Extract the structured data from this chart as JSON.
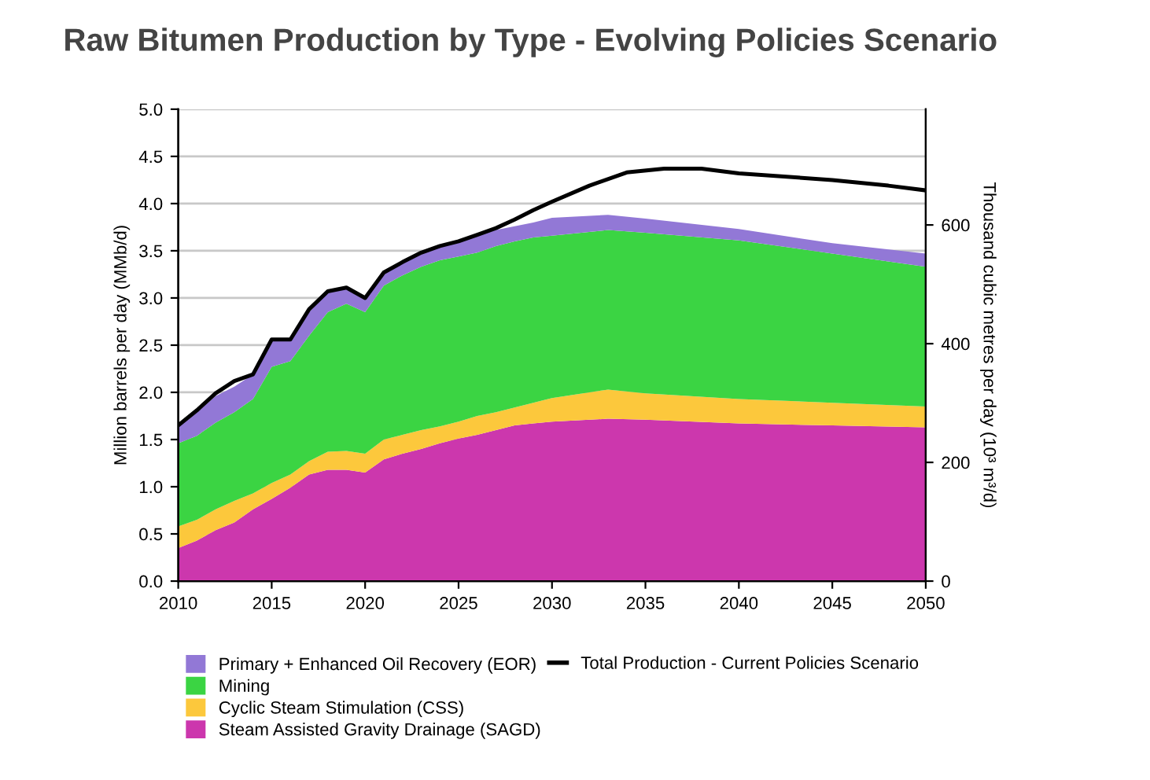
{
  "chart_data": {
    "type": "area",
    "stacked": true,
    "title": "Raw Bitumen Production by Type - Evolving Policies Scenario",
    "ylabel": "Million barrels per day (MMb/d)",
    "y2label": "Thousand cubic metres per day (10³ m³/d)",
    "x": [
      2010,
      2011,
      2012,
      2013,
      2014,
      2015,
      2016,
      2017,
      2018,
      2019,
      2020,
      2021,
      2022,
      2023,
      2024,
      2025,
      2026,
      2027,
      2028,
      2029,
      2030,
      2033,
      2035,
      2040,
      2045,
      2050
    ],
    "series": [
      {
        "name": "Steam Assisted Gravity Drainage (SAGD)",
        "color": "#cc37ad",
        "values": [
          0.35,
          0.43,
          0.54,
          0.62,
          0.76,
          0.87,
          0.99,
          1.13,
          1.18,
          1.18,
          1.15,
          1.29,
          1.35,
          1.4,
          1.46,
          1.51,
          1.55,
          1.6,
          1.65,
          1.67,
          1.69,
          1.72,
          1.71,
          1.67,
          1.65,
          1.63
        ]
      },
      {
        "name": "Cyclic Steam Stimulation (CSS)",
        "color": "#fcc83c",
        "values": [
          0.23,
          0.22,
          0.22,
          0.23,
          0.17,
          0.17,
          0.14,
          0.14,
          0.19,
          0.2,
          0.2,
          0.21,
          0.2,
          0.2,
          0.18,
          0.18,
          0.2,
          0.19,
          0.19,
          0.22,
          0.25,
          0.31,
          0.28,
          0.26,
          0.24,
          0.22
        ]
      },
      {
        "name": "Mining",
        "color": "#3bd443",
        "values": [
          0.88,
          0.89,
          0.92,
          0.94,
          1.0,
          1.23,
          1.2,
          1.33,
          1.48,
          1.56,
          1.5,
          1.63,
          1.69,
          1.73,
          1.76,
          1.75,
          1.73,
          1.76,
          1.76,
          1.75,
          1.72,
          1.69,
          1.7,
          1.68,
          1.58,
          1.48
        ]
      },
      {
        "name": "Primary + Enhanced Oil Recovery (EOR)",
        "color": "#9278d6",
        "values": [
          0.17,
          0.25,
          0.28,
          0.27,
          0.26,
          0.28,
          0.22,
          0.25,
          0.21,
          0.16,
          0.14,
          0.14,
          0.13,
          0.13,
          0.15,
          0.16,
          0.18,
          0.17,
          0.16,
          0.16,
          0.19,
          0.16,
          0.15,
          0.12,
          0.11,
          0.14
        ]
      },
      {
        "name": "Total Production - Current Policies Scenario",
        "type": "line",
        "color": "#000000",
        "x": [
          2010,
          2011,
          2012,
          2013,
          2014,
          2015,
          2016,
          2017,
          2018,
          2019,
          2020,
          2021,
          2022,
          2023,
          2024,
          2025,
          2026,
          2027,
          2028,
          2029,
          2030,
          2032,
          2034,
          2036,
          2038,
          2040,
          2045,
          2048,
          2050
        ],
        "values": [
          1.65,
          1.81,
          1.99,
          2.12,
          2.19,
          2.56,
          2.56,
          2.88,
          3.07,
          3.11,
          3.0,
          3.27,
          3.38,
          3.48,
          3.55,
          3.6,
          3.67,
          3.74,
          3.83,
          3.93,
          4.02,
          4.19,
          4.33,
          4.37,
          4.37,
          4.32,
          4.25,
          4.19,
          4.14
        ]
      }
    ],
    "xlim": [
      2010,
      2050
    ],
    "xticks": [
      2010,
      2015,
      2020,
      2025,
      2030,
      2035,
      2040,
      2045,
      2050
    ],
    "ylim": [
      0,
      5
    ],
    "yticks": [
      {
        "value": 0,
        "label": "0.0"
      },
      {
        "value": 0.5,
        "label": "0.5"
      },
      {
        "value": 1,
        "label": "1.0"
      },
      {
        "value": 1.5,
        "label": "1.5"
      },
      {
        "value": 2,
        "label": "2.0"
      },
      {
        "value": 2.5,
        "label": "2.5"
      },
      {
        "value": 3,
        "label": "3.0"
      },
      {
        "value": 3.5,
        "label": "3.5"
      },
      {
        "value": 4,
        "label": "4.0"
      },
      {
        "value": 4.5,
        "label": "4.5"
      },
      {
        "value": 5,
        "label": "5.0"
      }
    ],
    "y2lim": [
      0,
      795
    ],
    "y2ticks": [
      0,
      200,
      400,
      600
    ],
    "grid": "y",
    "legend": "bottom"
  }
}
